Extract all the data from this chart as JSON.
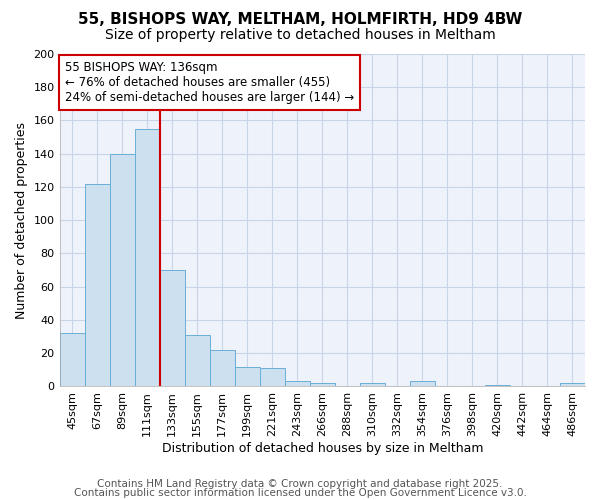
{
  "title_line1": "55, BISHOPS WAY, MELTHAM, HOLMFIRTH, HD9 4BW",
  "title_line2": "Size of property relative to detached houses in Meltham",
  "categories": [
    "45sqm",
    "67sqm",
    "89sqm",
    "111sqm",
    "133sqm",
    "155sqm",
    "177sqm",
    "199sqm",
    "221sqm",
    "243sqm",
    "266sqm",
    "288sqm",
    "310sqm",
    "332sqm",
    "354sqm",
    "376sqm",
    "398sqm",
    "420sqm",
    "442sqm",
    "464sqm",
    "486sqm"
  ],
  "values": [
    32,
    122,
    140,
    155,
    70,
    31,
    22,
    12,
    11,
    3,
    2,
    0,
    2,
    0,
    3,
    0,
    0,
    1,
    0,
    0,
    2
  ],
  "bar_color": "#cde0f0",
  "bar_edge_color": "#6aaed6",
  "vline_x": 3.5,
  "vline_color": "#cc0000",
  "annotation_text": "55 BISHOPS WAY: 136sqm\n← 76% of detached houses are smaller (455)\n24% of semi-detached houses are larger (144) →",
  "annotation_box_color": "#ffffff",
  "annotation_box_edge": "#cc0000",
  "xlabel": "Distribution of detached houses by size in Meltham",
  "ylabel": "Number of detached properties",
  "ylim": [
    0,
    200
  ],
  "yticks": [
    0,
    20,
    40,
    60,
    80,
    100,
    120,
    140,
    160,
    180,
    200
  ],
  "footnote1": "Contains HM Land Registry data © Crown copyright and database right 2025.",
  "footnote2": "Contains public sector information licensed under the Open Government Licence v3.0.",
  "plot_bg_color": "#eef2fb",
  "fig_bg_color": "#ffffff",
  "grid_color": "#c8d4e8",
  "title_fontsize": 11,
  "subtitle_fontsize": 10,
  "axis_label_fontsize": 9,
  "tick_fontsize": 8,
  "annotation_fontsize": 8.5,
  "footnote_fontsize": 7.5
}
